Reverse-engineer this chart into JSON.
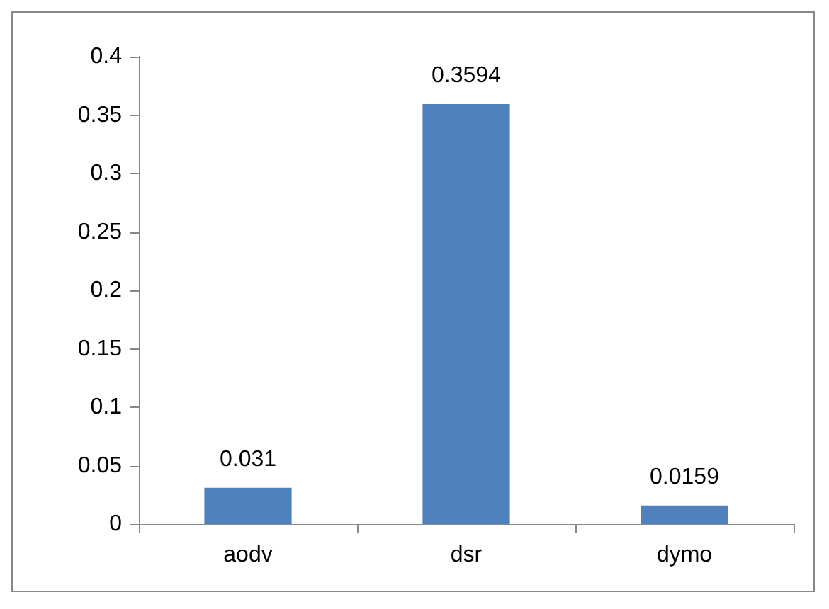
{
  "chart_data": {
    "type": "bar",
    "categories": [
      "aodv",
      "dsr",
      "dymo"
    ],
    "values": [
      0.031,
      0.3594,
      0.0159
    ],
    "color": "#4f81bd",
    "ylim": [
      0,
      0.4
    ],
    "yticks": [
      0,
      0.05,
      0.1,
      0.15,
      0.2,
      0.25,
      0.3,
      0.35,
      0.4
    ],
    "grid": false,
    "data_labels": true
  }
}
